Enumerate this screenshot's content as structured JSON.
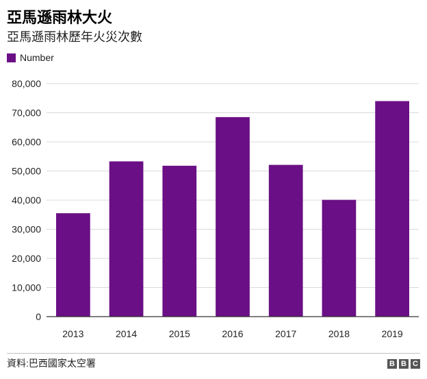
{
  "header": {
    "title": "亞馬遜雨林大火",
    "subtitle": "亞馬遜雨林歷年火災次數"
  },
  "footer": {
    "source": "資料:巴西國家太空署",
    "logo_letters": [
      "B",
      "B",
      "C"
    ]
  },
  "colors": {
    "bar": "#6a0f85",
    "gridline": "#d9d9d9",
    "axis": "#333333"
  },
  "chart_data": {
    "type": "bar",
    "title": "亞馬遜雨林大火",
    "subtitle": "亞馬遜雨林歷年火災次數",
    "categories": [
      "2013",
      "2014",
      "2015",
      "2016",
      "2017",
      "2018",
      "2019"
    ],
    "series": [
      {
        "name": "Number",
        "values": [
          35500,
          53300,
          51800,
          68500,
          52100,
          40100,
          74000
        ]
      }
    ],
    "xlabel": "",
    "ylabel": "",
    "ylim": [
      0,
      80000
    ],
    "yticks": [
      0,
      10000,
      20000,
      30000,
      40000,
      50000,
      60000,
      70000,
      80000
    ],
    "ytick_labels": [
      "0",
      "10,000",
      "20,000",
      "30,000",
      "40,000",
      "50,000",
      "60,000",
      "70,000",
      "80,000"
    ],
    "grid": true,
    "legend": "top-left"
  }
}
